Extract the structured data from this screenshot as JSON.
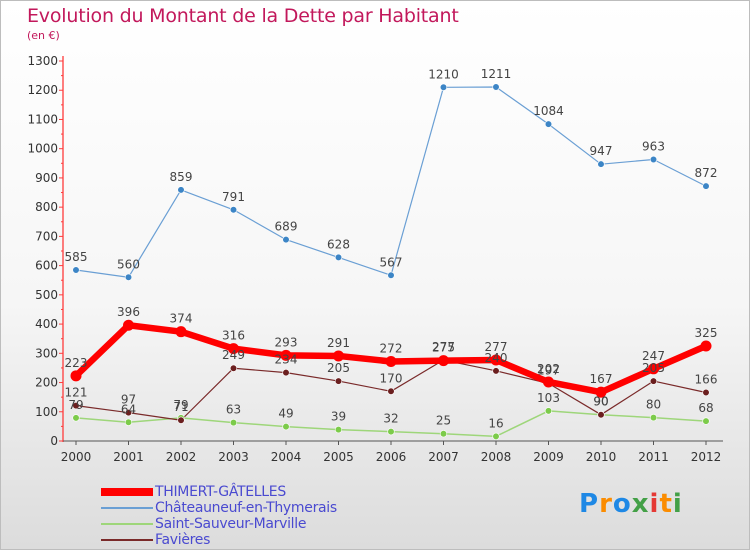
{
  "title": "Evolution du Montant de la Dette par Habitant",
  "unit": "(en €)",
  "logo": {
    "text": "Proxiti",
    "colors": [
      "#1e88e5",
      "#fb8c00",
      "#1e88e5",
      "#43a047",
      "#e53935",
      "#fb8c00",
      "#43a047"
    ]
  },
  "chart_data": {
    "type": "line",
    "x": [
      "2000",
      "2001",
      "2002",
      "2003",
      "2004",
      "2005",
      "2006",
      "2007",
      "2008",
      "2009",
      "2010",
      "2011",
      "2012"
    ],
    "ylim": [
      0,
      1300
    ],
    "yticks": [
      0,
      100,
      200,
      300,
      400,
      500,
      600,
      700,
      800,
      900,
      1000,
      1100,
      1200,
      1300
    ],
    "grid": false,
    "legend": "bottom-left",
    "series": [
      {
        "name": "Châteauneuf-en-Thymerais",
        "color": "#6a9fd4",
        "marker": "#3c85c6",
        "width": 1.2,
        "values": [
          585,
          560,
          859,
          791,
          689,
          628,
          567,
          1210,
          1211,
          1084,
          947,
          963,
          872
        ],
        "labels": [
          "585",
          "560",
          "859",
          "791",
          "689",
          "628",
          "567",
          "1210",
          "1211",
          "1084",
          "947",
          "963",
          "872"
        ]
      },
      {
        "name": "Saint-Sauveur-Marville",
        "color": "#9ed67a",
        "marker": "#7ccb4a",
        "width": 1.5,
        "values": [
          79,
          64,
          79,
          63,
          49,
          39,
          32,
          25,
          16,
          103,
          90,
          80,
          68
        ],
        "labels": [
          "79",
          "64",
          "79",
          "63",
          "49",
          "39",
          "32",
          "25",
          "16",
          "103",
          "90",
          "80",
          "68"
        ]
      },
      {
        "name": "Favières",
        "color": "#7a2a2a",
        "marker": "#6b1f1f",
        "width": 1.2,
        "values": [
          121,
          97,
          71,
          249,
          234,
          205,
          170,
          277,
          240,
          197,
          90,
          205,
          166
        ],
        "labels": [
          "121",
          "97",
          "71",
          "249",
          "234",
          "205",
          "170",
          "277",
          "240",
          "197",
          "90",
          "205",
          "166"
        ]
      },
      {
        "name": "THIMERT-GÂTELLES",
        "color": "#ff0000",
        "marker": "#ff0000",
        "width": 6.5,
        "values": [
          223,
          396,
          374,
          316,
          293,
          291,
          272,
          275,
          277,
          202,
          167,
          247,
          325
        ],
        "labels": [
          "223",
          "396",
          "374",
          "316",
          "293",
          "291",
          "272",
          "275",
          "277",
          "202",
          "167",
          "247",
          "325"
        ]
      }
    ],
    "legend_entries": [
      "THIMERT-GÂTELLES",
      "Châteauneuf-en-Thymerais",
      "Saint-Sauveur-Marville",
      "Favières"
    ]
  }
}
